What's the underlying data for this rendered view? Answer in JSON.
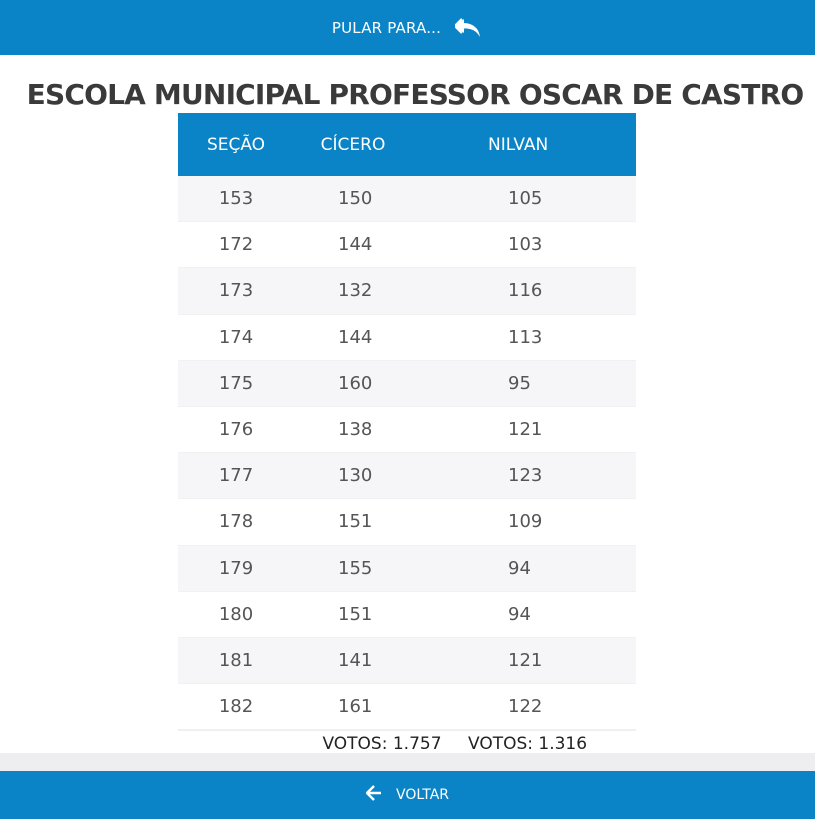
{
  "topbar": {
    "jump_label": "PULAR PARA..."
  },
  "title": "ESCOLA MUNICIPAL PROFESSOR OSCAR DE CASTRO",
  "table": {
    "headers": [
      "SEÇÃO",
      "CÍCERO",
      "NILVAN"
    ],
    "rows": [
      [
        "153",
        "150",
        "105"
      ],
      [
        "172",
        "144",
        "103"
      ],
      [
        "173",
        "132",
        "116"
      ],
      [
        "174",
        "144",
        "113"
      ],
      [
        "175",
        "160",
        "95"
      ],
      [
        "176",
        "138",
        "121"
      ],
      [
        "177",
        "130",
        "123"
      ],
      [
        "178",
        "151",
        "109"
      ],
      [
        "179",
        "155",
        "94"
      ],
      [
        "180",
        "151",
        "94"
      ],
      [
        "181",
        "141",
        "121"
      ],
      [
        "182",
        "161",
        "122"
      ]
    ],
    "totals": [
      "VOTOS: 1.757",
      "VOTOS: 1.316"
    ]
  },
  "bottombar": {
    "back_label": "VOLTAR"
  },
  "icons": {
    "jump": "reply-all-icon",
    "back": "arrow-left-icon"
  },
  "colors": {
    "accent": "#0a84c6"
  }
}
